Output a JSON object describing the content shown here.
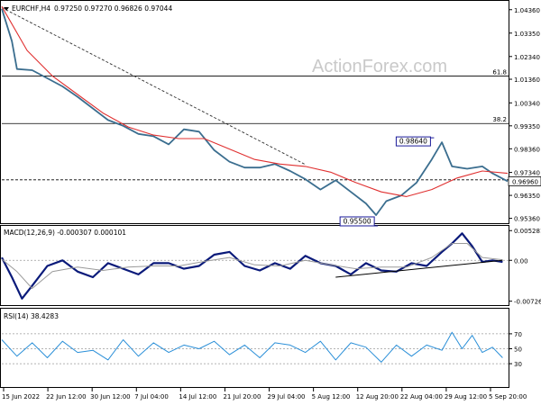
{
  "watermark": "ActionForex.com",
  "colors": {
    "price": "#3b6e8f",
    "ema": "#e03030",
    "macd": "#0a1a7a",
    "signal": "#9a9a9a",
    "rsi": "#2a8fd8",
    "grid": "#9a9a9a"
  },
  "chart_data": [
    {
      "type": "line",
      "panel": "price",
      "symbol": "EURCHF,H4",
      "header_values": [
        "0.97250",
        "0.97270",
        "0.96826",
        "0.97044"
      ],
      "ylim": [
        0.9515,
        1.047
      ],
      "yticks": [
        "1.04360",
        "1.03350",
        "1.02340",
        "1.01360",
        "1.00340",
        "0.99350",
        "0.98360",
        "0.97340",
        "0.96350",
        "0.95360"
      ],
      "current_price_label": "0.96960",
      "fib_levels": [
        {
          "label": "61.8",
          "value": 1.015
        },
        {
          "label": "38.2",
          "value": 0.9945
        }
      ],
      "support_level": 0.9702,
      "annotations": [
        {
          "label": "0.98640",
          "x": 0.851,
          "y": 0.9864
        },
        {
          "label": "0.95500",
          "x": 0.74,
          "y": 0.955
        }
      ],
      "trendline": {
        "x": [
          0.0,
          0.6
        ],
        "y": [
          1.0445,
          0.9768
        ]
      },
      "series": [
        {
          "name": "price",
          "x": [
            0.0,
            0.02,
            0.03,
            0.06,
            0.09,
            0.12,
            0.15,
            0.18,
            0.21,
            0.24,
            0.27,
            0.3,
            0.33,
            0.36,
            0.39,
            0.42,
            0.45,
            0.48,
            0.51,
            0.54,
            0.57,
            0.6,
            0.63,
            0.66,
            0.69,
            0.72,
            0.74,
            0.76,
            0.79,
            0.82,
            0.85,
            0.87,
            0.89,
            0.92,
            0.95,
            0.97,
            1.0
          ],
          "y": [
            1.044,
            1.03,
            1.018,
            1.0175,
            1.014,
            1.0105,
            1.006,
            1.001,
            0.996,
            0.9935,
            0.99,
            0.989,
            0.9855,
            0.992,
            0.991,
            0.983,
            0.978,
            0.9755,
            0.9755,
            0.977,
            0.974,
            0.9705,
            0.966,
            0.97,
            0.965,
            0.96,
            0.955,
            0.961,
            0.9635,
            0.969,
            0.979,
            0.9864,
            0.976,
            0.975,
            0.976,
            0.973,
            0.9696
          ]
        },
        {
          "name": "EMA",
          "x": [
            0.0,
            0.05,
            0.1,
            0.15,
            0.2,
            0.25,
            0.3,
            0.35,
            0.4,
            0.45,
            0.5,
            0.55,
            0.6,
            0.65,
            0.7,
            0.75,
            0.8,
            0.85,
            0.9,
            0.95,
            1.0
          ],
          "y": [
            1.045,
            1.026,
            1.015,
            1.007,
            0.999,
            0.993,
            0.9895,
            0.988,
            0.988,
            0.9835,
            0.979,
            0.977,
            0.976,
            0.9735,
            0.969,
            0.965,
            0.963,
            0.966,
            0.971,
            0.974,
            0.973
          ]
        }
      ]
    },
    {
      "type": "line",
      "panel": "macd",
      "title": "MACD(12,26,9) -0.000307 0.000101",
      "ylim": [
        -0.0078,
        0.0058
      ],
      "yticks": [
        "0.005281",
        "0.00",
        "-0.007263"
      ],
      "support_line": {
        "x": [
          0.66,
          0.99
        ],
        "y": [
          -0.003,
          0.0
        ]
      },
      "series": [
        {
          "name": "MACD",
          "x": [
            0.0,
            0.02,
            0.04,
            0.06,
            0.09,
            0.12,
            0.15,
            0.18,
            0.21,
            0.24,
            0.27,
            0.3,
            0.33,
            0.36,
            0.39,
            0.42,
            0.45,
            0.48,
            0.51,
            0.54,
            0.57,
            0.6,
            0.63,
            0.66,
            0.69,
            0.72,
            0.75,
            0.78,
            0.81,
            0.84,
            0.87,
            0.89,
            0.91,
            0.93,
            0.95,
            0.97,
            0.99
          ],
          "y": [
            0.0005,
            -0.003,
            -0.0068,
            -0.0045,
            -0.001,
            0.0,
            -0.002,
            -0.003,
            -0.0005,
            -0.0015,
            -0.0025,
            -0.0005,
            -0.0005,
            -0.0015,
            -0.001,
            0.001,
            0.0015,
            -0.001,
            -0.0018,
            -0.0005,
            -0.0015,
            0.0008,
            -0.0005,
            -0.001,
            -0.0025,
            -0.0005,
            -0.0018,
            -0.002,
            -0.0005,
            -0.001,
            0.0015,
            0.003,
            0.0048,
            0.0025,
            -0.0003,
            0.0,
            -0.0003
          ]
        },
        {
          "name": "Signal",
          "x": [
            0.0,
            0.03,
            0.06,
            0.1,
            0.15,
            0.2,
            0.25,
            0.3,
            0.35,
            0.4,
            0.45,
            0.5,
            0.55,
            0.6,
            0.65,
            0.7,
            0.75,
            0.8,
            0.85,
            0.89,
            0.92,
            0.95,
            0.99
          ],
          "y": [
            0.0002,
            -0.002,
            -0.005,
            -0.002,
            -0.0012,
            -0.0018,
            -0.0012,
            -0.001,
            -0.001,
            -0.0002,
            0.0005,
            -0.0008,
            -0.001,
            0.0,
            -0.0008,
            -0.0015,
            -0.0012,
            -0.0012,
            0.0005,
            0.003,
            0.003,
            0.0005,
            0.0001
          ]
        }
      ]
    },
    {
      "type": "line",
      "panel": "rsi",
      "title": "RSI(14) 38.4283",
      "ylim": [
        0,
        100
      ],
      "yticks": [
        "70",
        "50",
        "30"
      ],
      "series": [
        {
          "name": "RSI",
          "x": [
            0.0,
            0.03,
            0.06,
            0.09,
            0.12,
            0.15,
            0.18,
            0.21,
            0.24,
            0.27,
            0.3,
            0.33,
            0.36,
            0.39,
            0.42,
            0.45,
            0.48,
            0.51,
            0.54,
            0.57,
            0.6,
            0.63,
            0.66,
            0.69,
            0.72,
            0.75,
            0.78,
            0.81,
            0.84,
            0.87,
            0.89,
            0.91,
            0.93,
            0.95,
            0.97,
            0.99
          ],
          "y": [
            62,
            40,
            58,
            38,
            60,
            45,
            48,
            35,
            62,
            40,
            58,
            45,
            55,
            50,
            60,
            42,
            55,
            38,
            58,
            55,
            45,
            60,
            35,
            58,
            52,
            32,
            55,
            40,
            55,
            48,
            72,
            50,
            68,
            45,
            52,
            38
          ]
        }
      ]
    }
  ],
  "x_ticks": [
    "15 Jun 2022",
    "22 Jun 12:00",
    "30 Jun 12:00",
    "7 Jul 04:00",
    "14 Jul 12:00",
    "21 Jul 20:00",
    "29 Jul 04:00",
    "5 Aug 12:00",
    "12 Aug 20:00",
    "22 Aug 04:00",
    "29 Aug 12:00",
    "5 Sep 20:00"
  ]
}
